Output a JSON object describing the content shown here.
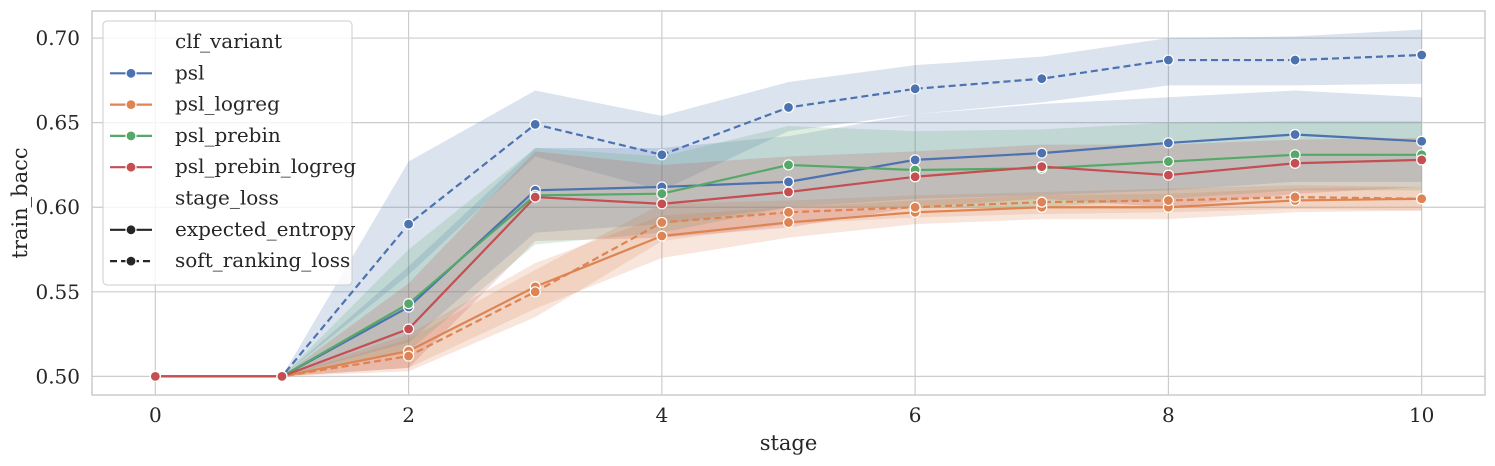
{
  "chart_data": {
    "type": "line",
    "xlabel": "stage",
    "ylabel": "train_bacc",
    "xlim": [
      -0.5,
      10.5
    ],
    "ylim": [
      0.489,
      0.716
    ],
    "xticks": [
      0,
      2,
      4,
      6,
      8,
      10
    ],
    "yticks": [
      0.5,
      0.55,
      0.6,
      0.65,
      0.7
    ],
    "xtick_labels": [
      "0",
      "2",
      "4",
      "6",
      "8",
      "10"
    ],
    "ytick_labels": [
      "0.50",
      "0.55",
      "0.60",
      "0.65",
      "0.70"
    ],
    "grid": true,
    "legend_position": "upper-left",
    "legend": {
      "hue_title": "clf_variant",
      "hue_entries": [
        {
          "name": "psl",
          "color": "#4c72b0"
        },
        {
          "name": "psl_logreg",
          "color": "#dd8452"
        },
        {
          "name": "psl_prebin",
          "color": "#55a868"
        },
        {
          "name": "psl_prebin_logreg",
          "color": "#c44e52"
        }
      ],
      "style_title": "stage_loss",
      "style_entries": [
        {
          "name": "expected_entropy",
          "dash": "solid"
        },
        {
          "name": "soft_ranking_loss",
          "dash": "dashed"
        }
      ]
    },
    "x": [
      0,
      1,
      2,
      3,
      4,
      5,
      6,
      7,
      8,
      9,
      10
    ],
    "series": [
      {
        "name": "psl / expected_entropy",
        "color": "#4c72b0",
        "dash": "solid",
        "values": [
          0.5,
          0.5,
          0.541,
          0.61,
          0.612,
          0.615,
          0.628,
          0.632,
          0.638,
          0.643,
          0.639
        ],
        "ci_low": [
          0.5,
          0.5,
          0.52,
          0.585,
          0.59,
          0.6,
          0.605,
          0.607,
          0.61,
          0.615,
          0.615
        ],
        "ci_high": [
          0.5,
          0.5,
          0.565,
          0.635,
          0.635,
          0.642,
          0.655,
          0.661,
          0.665,
          0.669,
          0.665
        ]
      },
      {
        "name": "psl / soft_ranking_loss",
        "color": "#4c72b0",
        "dash": "dashed",
        "values": [
          0.5,
          0.5,
          0.59,
          0.649,
          0.631,
          0.659,
          0.67,
          0.676,
          0.687,
          0.687,
          0.69
        ],
        "ci_low": [
          0.5,
          0.5,
          0.56,
          0.63,
          0.61,
          0.645,
          0.655,
          0.662,
          0.672,
          0.672,
          0.673
        ],
        "ci_high": [
          0.5,
          0.5,
          0.627,
          0.669,
          0.654,
          0.674,
          0.684,
          0.689,
          0.7,
          0.701,
          0.705
        ]
      },
      {
        "name": "psl_logreg / expected_entropy",
        "color": "#dd8452",
        "dash": "solid",
        "values": [
          0.5,
          0.5,
          0.515,
          0.553,
          0.583,
          0.591,
          0.597,
          0.6,
          0.6,
          0.604,
          0.605
        ],
        "ci_low": [
          0.5,
          0.5,
          0.505,
          0.54,
          0.57,
          0.582,
          0.59,
          0.593,
          0.593,
          0.597,
          0.598
        ],
        "ci_high": [
          0.5,
          0.5,
          0.525,
          0.567,
          0.595,
          0.6,
          0.604,
          0.607,
          0.608,
          0.611,
          0.612
        ]
      },
      {
        "name": "psl_logreg / soft_ranking_loss",
        "color": "#dd8452",
        "dash": "dashed",
        "values": [
          0.5,
          0.5,
          0.512,
          0.55,
          0.591,
          0.597,
          0.6,
          0.603,
          0.604,
          0.606,
          0.605
        ],
        "ci_low": [
          0.5,
          0.5,
          0.503,
          0.535,
          0.58,
          0.59,
          0.594,
          0.596,
          0.597,
          0.599,
          0.598
        ],
        "ci_high": [
          0.5,
          0.5,
          0.522,
          0.563,
          0.602,
          0.604,
          0.607,
          0.609,
          0.611,
          0.613,
          0.612
        ]
      },
      {
        "name": "psl_prebin / expected_entropy",
        "color": "#55a868",
        "dash": "solid",
        "values": [
          0.5,
          0.5,
          0.543,
          0.607,
          0.608,
          0.625,
          0.622,
          0.623,
          0.627,
          0.631,
          0.631
        ],
        "ci_low": [
          0.5,
          0.5,
          0.515,
          0.578,
          0.585,
          0.6,
          0.6,
          0.6,
          0.605,
          0.61,
          0.61
        ],
        "ci_high": [
          0.5,
          0.5,
          0.575,
          0.635,
          0.63,
          0.648,
          0.645,
          0.646,
          0.65,
          0.651,
          0.651
        ]
      },
      {
        "name": "psl_prebin_logreg / expected_entropy",
        "color": "#c44e52",
        "dash": "solid",
        "values": [
          0.5,
          0.5,
          0.528,
          0.606,
          0.602,
          0.609,
          0.618,
          0.624,
          0.619,
          0.626,
          0.628
        ],
        "ci_low": [
          0.5,
          0.5,
          0.505,
          0.58,
          0.582,
          0.588,
          0.6,
          0.605,
          0.6,
          0.608,
          0.612
        ],
        "ci_high": [
          0.5,
          0.5,
          0.555,
          0.633,
          0.625,
          0.63,
          0.633,
          0.637,
          0.637,
          0.64,
          0.641
        ]
      }
    ]
  }
}
